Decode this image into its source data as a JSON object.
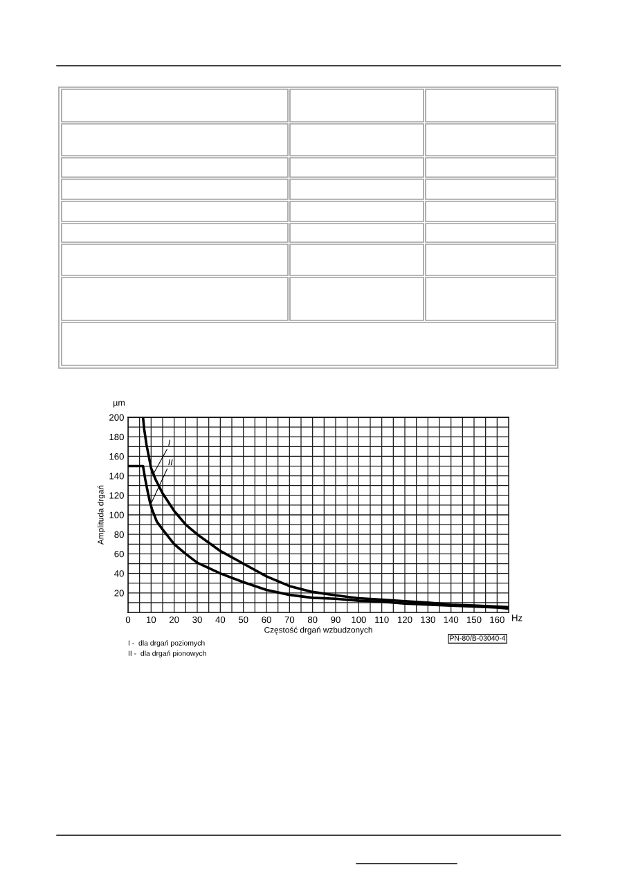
{
  "chart_data": {
    "type": "line",
    "xlabel": "Częstość drgań wzbudzonych",
    "ylabel": "Amplituda drgań",
    "annotations": [
      "µm",
      "Hz",
      "I -  dla drgań poziomych",
      "II -  dla drgań pionowych",
      "PN-80/B-03040-4"
    ],
    "series": [
      {
        "name": "I",
        "color": "#000000",
        "x": [
          6.5,
          7,
          8,
          10,
          12,
          15,
          20,
          25,
          30,
          40,
          50,
          60,
          70,
          80,
          90,
          100,
          110,
          120,
          130,
          140,
          150,
          160,
          165
        ],
        "values": [
          200,
          188,
          172,
          148,
          136,
          122,
          104,
          90,
          80,
          63,
          50,
          37,
          27,
          21,
          17.6,
          14.5,
          13,
          11.5,
          10,
          8,
          7,
          6,
          5.5
        ]
      },
      {
        "name": "II",
        "color": "#000000",
        "x": [
          0,
          6.5,
          7.5,
          8.5,
          9.5,
          10.5,
          12.5,
          15,
          20,
          25,
          30,
          40,
          50,
          60,
          70,
          80,
          90,
          100,
          110,
          120,
          130,
          140,
          150,
          160,
          165
        ],
        "values": [
          150,
          150,
          136,
          124,
          113,
          105,
          93,
          85,
          70,
          60,
          51,
          40,
          31,
          23,
          18,
          15,
          14,
          12,
          11,
          9,
          8,
          7,
          6,
          5,
          4
        ]
      }
    ],
    "xlim": [
      0,
      165
    ],
    "ylim": [
      0,
      200
    ],
    "xticks": [
      0,
      {
        "value": 5,
        "label": null
      },
      10,
      {
        "value": 15,
        "label": null
      },
      20,
      {
        "value": 25,
        "label": null
      },
      30,
      {
        "value": 35,
        "label": null
      },
      40,
      {
        "value": 45,
        "label": null
      },
      50,
      {
        "value": 55,
        "label": null
      },
      60,
      {
        "value": 65,
        "label": null
      },
      70,
      {
        "value": 75,
        "label": null
      },
      80,
      {
        "value": 85,
        "label": null
      },
      90,
      {
        "value": 95,
        "label": null
      },
      100,
      {
        "value": 105,
        "label": null
      },
      110,
      {
        "value": 115,
        "label": null
      },
      120,
      {
        "value": 125,
        "label": null
      },
      130,
      {
        "value": 135,
        "label": null
      },
      140,
      {
        "value": 145,
        "label": null
      },
      150,
      {
        "value": 155,
        "label": null
      },
      160
    ],
    "yticks": [
      {
        "value": 10,
        "label": null
      },
      20,
      {
        "value": 30,
        "label": null
      },
      40,
      {
        "value": 50,
        "label": null
      },
      60,
      {
        "value": 70,
        "label": null
      },
      80,
      {
        "value": 90,
        "label": null
      },
      100,
      {
        "value": 110,
        "label": null
      },
      120,
      {
        "value": 130,
        "label": null
      },
      140,
      {
        "value": 150,
        "label": null
      },
      160,
      {
        "value": 170,
        "label": null
      },
      180,
      {
        "value": 190,
        "label": null
      },
      200
    ],
    "grid": true,
    "marker": "none",
    "line_style": "solid"
  }
}
